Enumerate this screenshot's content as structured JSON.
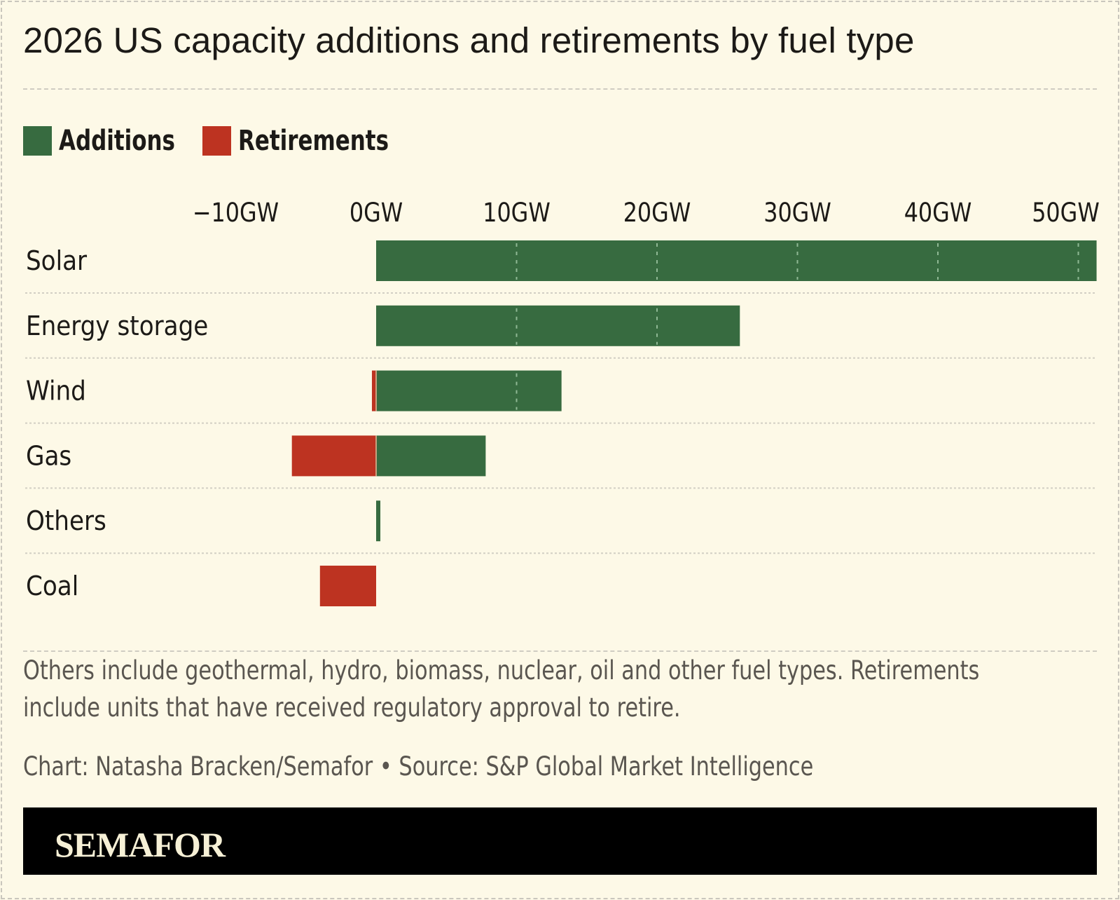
{
  "title": "2026 US capacity additions and retirements by fuel type",
  "legend": [
    {
      "label": "Additions",
      "color": "#376b40"
    },
    {
      "label": "Retirements",
      "color": "#bd3321"
    }
  ],
  "footnote": {
    "line1": "Others include geothermal, hydro, biomass, nuclear, oil and other fuel types. Retirements",
    "line2": "include units that have received regulatory approval to retire.",
    "credit": "Chart: Natasha Bracken/Semafor • Source: S&P Global Market Intelligence"
  },
  "brand": "SEMAFOR",
  "chart_data": {
    "type": "bar",
    "orientation": "horizontal",
    "stacked": "diverging",
    "title": "2026 US capacity additions and retirements by fuel type",
    "xlabel": "",
    "ylabel": "",
    "unit": "GW",
    "xlim": [
      -12,
      52
    ],
    "xticks": [
      -10,
      0,
      10,
      20,
      30,
      40,
      50
    ],
    "xtick_labels": [
      "−10GW",
      "0GW",
      "10GW",
      "20GW",
      "30GW",
      "40GW",
      "50GW"
    ],
    "grid": "vertical dashed inside bars",
    "legend_position": "top-left",
    "categories": [
      "Solar",
      "Energy storage",
      "Wind",
      "Gas",
      "Others",
      "Coal"
    ],
    "series": [
      {
        "name": "Additions",
        "color": "#376b40",
        "values": [
          51.3,
          25.9,
          13.2,
          7.8,
          0.3,
          0
        ]
      },
      {
        "name": "Retirements",
        "color": "#bd3321",
        "values": [
          0,
          0,
          -0.3,
          -6.0,
          0,
          -4.0
        ]
      }
    ]
  }
}
